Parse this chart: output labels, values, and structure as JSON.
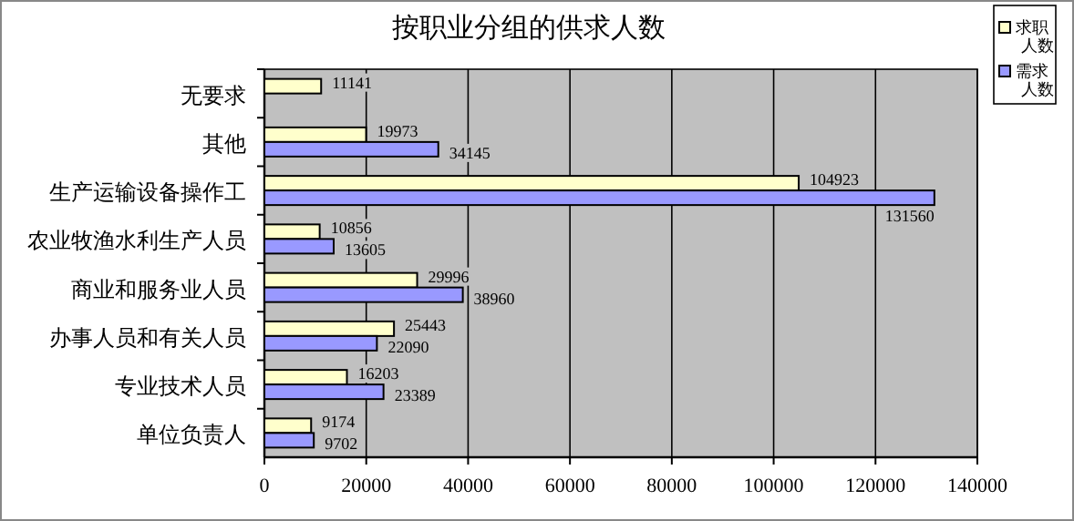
{
  "chart_data": {
    "type": "bar",
    "orientation": "horizontal",
    "title": "按职业分组的供求人数",
    "categories": [
      "无要求",
      "其他",
      "生产运输设备操作工",
      "农业牧渔水利生产人员",
      "商业和服务业人员",
      "办事人员和有关人员",
      "专业技术人员",
      "单位负责人"
    ],
    "series": [
      {
        "name": "求职人数",
        "color": "#ffffcc",
        "values": [
          11141,
          19973,
          104923,
          10856,
          29996,
          25443,
          16203,
          9174
        ]
      },
      {
        "name": "需求人数",
        "color": "#9999ff",
        "values": [
          null,
          34145,
          131560,
          13605,
          38960,
          22090,
          23389,
          9702
        ]
      }
    ],
    "xlim": [
      0,
      140000
    ],
    "xticks": [
      0,
      20000,
      40000,
      60000,
      80000,
      100000,
      120000,
      140000
    ],
    "grid": "x",
    "legend": "top right",
    "data_labels": true
  }
}
